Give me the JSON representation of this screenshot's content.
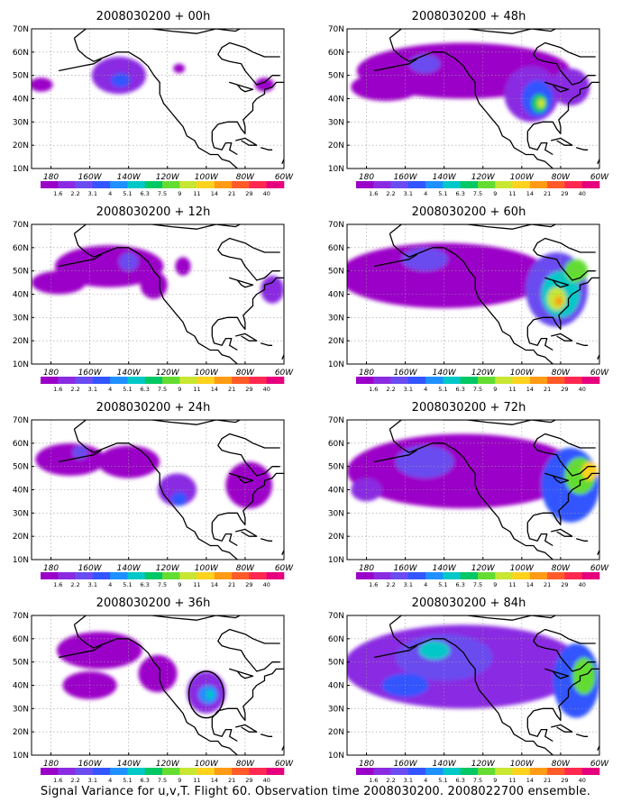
{
  "caption": "Signal Variance for u,v,T. Flight 60. Observation time 2008030200. 2008022700 ensemble.",
  "colors": {
    "levels": [
      "#9b00c8",
      "#8a2be2",
      "#6a4cf0",
      "#3355ff",
      "#1e90ff",
      "#00c8c8",
      "#00c864",
      "#64dc32",
      "#c8e632",
      "#ffd21e",
      "#ff9b14",
      "#ff5a28",
      "#ff2850",
      "#e6007d"
    ],
    "coast": "#000000",
    "grid": "#9a9a9a"
  },
  "chart_data": [
    {
      "type": "heatmap",
      "title": "2008030200 + 00h",
      "xticks": [
        "180",
        "160W",
        "140W",
        "120W",
        "100W",
        "80W",
        "60W"
      ],
      "yticks": [
        "10N",
        "20N",
        "30N",
        "40N",
        "50N",
        "60N",
        "70N"
      ],
      "xlim": [
        -190,
        -60
      ],
      "ylim": [
        10,
        70
      ],
      "grid": true,
      "colorbar": [
        "1.6",
        "2.2",
        "3.1",
        "4",
        "5.1",
        "6.3",
        "7.5",
        "9",
        "11",
        "14",
        "21",
        "29",
        "40"
      ],
      "blobs": [
        {
          "lon": -145,
          "lat": 50,
          "rlon": 14,
          "rlat": 8,
          "level": 1
        },
        {
          "lon": -144,
          "lat": 48,
          "rlon": 5,
          "rlat": 3,
          "level": 3
        },
        {
          "lon": -185,
          "lat": 46,
          "rlon": 6,
          "rlat": 3,
          "level": 0
        },
        {
          "lon": -114,
          "lat": 53,
          "rlon": 3,
          "rlat": 2,
          "level": 0
        },
        {
          "lon": -70,
          "lat": 46,
          "rlon": 5,
          "rlat": 3,
          "level": 0
        }
      ]
    },
    {
      "type": "heatmap",
      "title": "2008030200 + 12h",
      "xticks": [
        "180",
        "160W",
        "140W",
        "120W",
        "100W",
        "80W",
        "60W"
      ],
      "yticks": [
        "10N",
        "20N",
        "30N",
        "40N",
        "50N",
        "60N",
        "70N"
      ],
      "xlim": [
        -190,
        -60
      ],
      "ylim": [
        10,
        70
      ],
      "grid": true,
      "colorbar": [
        "1.6",
        "2.2",
        "3.1",
        "4",
        "5.1",
        "6.3",
        "7.5",
        "9",
        "11",
        "14",
        "21",
        "29",
        "40"
      ],
      "blobs": [
        {
          "lon": -150,
          "lat": 52,
          "rlon": 28,
          "rlat": 9,
          "level": 0
        },
        {
          "lon": -176,
          "lat": 45,
          "rlon": 14,
          "rlat": 5,
          "level": 0
        },
        {
          "lon": -140,
          "lat": 54,
          "rlon": 5,
          "rlat": 4,
          "level": 2
        },
        {
          "lon": -127,
          "lat": 44,
          "rlon": 7,
          "rlat": 6,
          "level": 0
        },
        {
          "lon": -112,
          "lat": 52,
          "rlon": 4,
          "rlat": 4,
          "level": 0
        },
        {
          "lon": -66,
          "lat": 42,
          "rlon": 6,
          "rlat": 6,
          "level": 1
        }
      ]
    },
    {
      "type": "heatmap",
      "title": "2008030200 + 24h",
      "xticks": [
        "180",
        "160W",
        "140W",
        "120W",
        "100W",
        "80W",
        "60W"
      ],
      "yticks": [
        "10N",
        "20N",
        "30N",
        "40N",
        "50N",
        "60N",
        "70N"
      ],
      "xlim": [
        -190,
        -60
      ],
      "ylim": [
        10,
        70
      ],
      "grid": true,
      "colorbar": [
        "1.6",
        "2.2",
        "3.1",
        "4",
        "5.1",
        "6.3",
        "7.5",
        "9",
        "11",
        "14",
        "21",
        "29",
        "40"
      ],
      "blobs": [
        {
          "lon": -170,
          "lat": 53,
          "rlon": 18,
          "rlat": 7,
          "level": 0
        },
        {
          "lon": -140,
          "lat": 52,
          "rlon": 16,
          "rlat": 7,
          "level": 0
        },
        {
          "lon": -115,
          "lat": 40,
          "rlon": 10,
          "rlat": 7,
          "level": 1
        },
        {
          "lon": -114,
          "lat": 36,
          "rlon": 4,
          "rlat": 3,
          "level": 3
        },
        {
          "lon": -78,
          "lat": 42,
          "rlon": 12,
          "rlat": 10,
          "level": 0
        },
        {
          "lon": -165,
          "lat": 56,
          "rlon": 4,
          "rlat": 3,
          "level": 2
        }
      ]
    },
    {
      "type": "heatmap",
      "title": "2008030200 + 36h",
      "xticks": [
        "180",
        "160W",
        "140W",
        "120W",
        "100W",
        "80W",
        "60W"
      ],
      "yticks": [
        "10N",
        "20N",
        "30N",
        "40N",
        "50N",
        "60N",
        "70N"
      ],
      "xlim": [
        -190,
        -60
      ],
      "ylim": [
        10,
        70
      ],
      "grid": true,
      "colorbar": [
        "1.6",
        "2.2",
        "3.1",
        "4",
        "5.1",
        "6.3",
        "7.5",
        "9",
        "11",
        "14",
        "21",
        "29",
        "40"
      ],
      "blobs": [
        {
          "lon": -155,
          "lat": 55,
          "rlon": 22,
          "rlat": 8,
          "level": 0
        },
        {
          "lon": -160,
          "lat": 40,
          "rlon": 14,
          "rlat": 6,
          "level": 0
        },
        {
          "lon": -125,
          "lat": 45,
          "rlon": 10,
          "rlat": 8,
          "level": 0
        },
        {
          "lon": -100,
          "lat": 37,
          "rlon": 10,
          "rlat": 9,
          "level": 1
        },
        {
          "lon": -99,
          "lat": 36,
          "rlon": 5,
          "rlat": 4,
          "level": 4
        },
        {
          "lon": -98,
          "lat": 36,
          "rlon": 2,
          "rlat": 2,
          "level": 5
        }
      ],
      "circle": {
        "lon": -100,
        "lat": 36,
        "rlon": 9,
        "rlat": 10
      }
    },
    {
      "type": "heatmap",
      "title": "2008030200 + 48h",
      "xticks": [
        "180",
        "160W",
        "140W",
        "120W",
        "100W",
        "80W",
        "60W"
      ],
      "yticks": [
        "10N",
        "20N",
        "30N",
        "40N",
        "50N",
        "60N",
        "70N"
      ],
      "xlim": [
        -190,
        -60
      ],
      "ylim": [
        10,
        70
      ],
      "grid": true,
      "colorbar": [
        "1.6",
        "2.2",
        "3.1",
        "4",
        "5.1",
        "6.3",
        "7.5",
        "9",
        "11",
        "14",
        "21",
        "29",
        "40"
      ],
      "blobs": [
        {
          "lon": -130,
          "lat": 52,
          "rlon": 55,
          "rlat": 12,
          "level": 0
        },
        {
          "lon": -170,
          "lat": 45,
          "rlon": 18,
          "rlat": 6,
          "level": 0
        },
        {
          "lon": -95,
          "lat": 42,
          "rlon": 14,
          "rlat": 12,
          "level": 1
        },
        {
          "lon": -92,
          "lat": 40,
          "rlon": 8,
          "rlat": 8,
          "level": 3
        },
        {
          "lon": -91,
          "lat": 38,
          "rlon": 4,
          "rlat": 4,
          "level": 6
        },
        {
          "lon": -90,
          "lat": 38,
          "rlon": 2,
          "rlat": 2,
          "level": 8
        },
        {
          "lon": -75,
          "lat": 45,
          "rlon": 10,
          "rlat": 8,
          "level": 1
        },
        {
          "lon": -150,
          "lat": 55,
          "rlon": 8,
          "rlat": 4,
          "level": 2
        }
      ]
    },
    {
      "type": "heatmap",
      "title": "2008030200 + 60h",
      "xticks": [
        "180",
        "160W",
        "140W",
        "120W",
        "100W",
        "80W",
        "60W"
      ],
      "yticks": [
        "10N",
        "20N",
        "30N",
        "40N",
        "50N",
        "60N",
        "70N"
      ],
      "xlim": [
        -190,
        -60
      ],
      "ylim": [
        10,
        70
      ],
      "grid": true,
      "colorbar": [
        "1.6",
        "2.2",
        "3.1",
        "4",
        "5.1",
        "6.3",
        "7.5",
        "9",
        "11",
        "14",
        "21",
        "29",
        "40"
      ],
      "blobs": [
        {
          "lon": -140,
          "lat": 48,
          "rlon": 55,
          "rlat": 14,
          "level": 0
        },
        {
          "lon": -150,
          "lat": 55,
          "rlon": 12,
          "rlat": 5,
          "level": 2
        },
        {
          "lon": -82,
          "lat": 42,
          "rlon": 16,
          "rlat": 16,
          "level": 2
        },
        {
          "lon": -80,
          "lat": 40,
          "rlon": 10,
          "rlat": 10,
          "level": 5
        },
        {
          "lon": -82,
          "lat": 38,
          "rlon": 5,
          "rlat": 5,
          "level": 8
        },
        {
          "lon": -81,
          "lat": 37,
          "rlon": 2,
          "rlat": 2,
          "level": 10
        },
        {
          "lon": -72,
          "lat": 50,
          "rlon": 6,
          "rlat": 5,
          "level": 7
        }
      ]
    },
    {
      "type": "heatmap",
      "title": "2008030200 + 72h",
      "xticks": [
        "180",
        "160W",
        "140W",
        "120W",
        "100W",
        "80W",
        "60W"
      ],
      "yticks": [
        "10N",
        "20N",
        "30N",
        "40N",
        "50N",
        "60N",
        "70N"
      ],
      "xlim": [
        -190,
        -60
      ],
      "ylim": [
        10,
        70
      ],
      "grid": true,
      "colorbar": [
        "1.6",
        "2.2",
        "3.1",
        "4",
        "5.1",
        "6.3",
        "7.5",
        "9",
        "11",
        "14",
        "21",
        "29",
        "40"
      ],
      "blobs": [
        {
          "lon": -130,
          "lat": 48,
          "rlon": 60,
          "rlat": 16,
          "level": 0
        },
        {
          "lon": -150,
          "lat": 52,
          "rlon": 15,
          "rlat": 7,
          "level": 2
        },
        {
          "lon": -180,
          "lat": 40,
          "rlon": 8,
          "rlat": 5,
          "level": 1
        },
        {
          "lon": -75,
          "lat": 42,
          "rlon": 15,
          "rlat": 16,
          "level": 3
        },
        {
          "lon": -70,
          "lat": 46,
          "rlon": 8,
          "rlat": 8,
          "level": 7
        },
        {
          "lon": -65,
          "lat": 48,
          "rlon": 4,
          "rlat": 4,
          "level": 9
        }
      ]
    },
    {
      "type": "heatmap",
      "title": "2008030200 + 84h",
      "xticks": [
        "180",
        "160W",
        "140W",
        "120W",
        "100W",
        "80W",
        "60W"
      ],
      "yticks": [
        "10N",
        "20N",
        "30N",
        "40N",
        "50N",
        "60N",
        "70N"
      ],
      "xlim": [
        -190,
        -60
      ],
      "ylim": [
        10,
        70
      ],
      "grid": true,
      "colorbar": [
        "1.6",
        "2.2",
        "3.1",
        "4",
        "5.1",
        "6.3",
        "7.5",
        "9",
        "11",
        "14",
        "21",
        "29",
        "40"
      ],
      "blobs": [
        {
          "lon": -130,
          "lat": 48,
          "rlon": 62,
          "rlat": 18,
          "level": 1
        },
        {
          "lon": -140,
          "lat": 52,
          "rlon": 25,
          "rlat": 10,
          "level": 2
        },
        {
          "lon": -145,
          "lat": 55,
          "rlon": 8,
          "rlat": 4,
          "level": 5
        },
        {
          "lon": -160,
          "lat": 40,
          "rlon": 12,
          "rlat": 5,
          "level": 3
        },
        {
          "lon": -72,
          "lat": 42,
          "rlon": 12,
          "rlat": 16,
          "level": 3
        },
        {
          "lon": -68,
          "lat": 44,
          "rlon": 6,
          "rlat": 8,
          "level": 7
        }
      ]
    }
  ]
}
